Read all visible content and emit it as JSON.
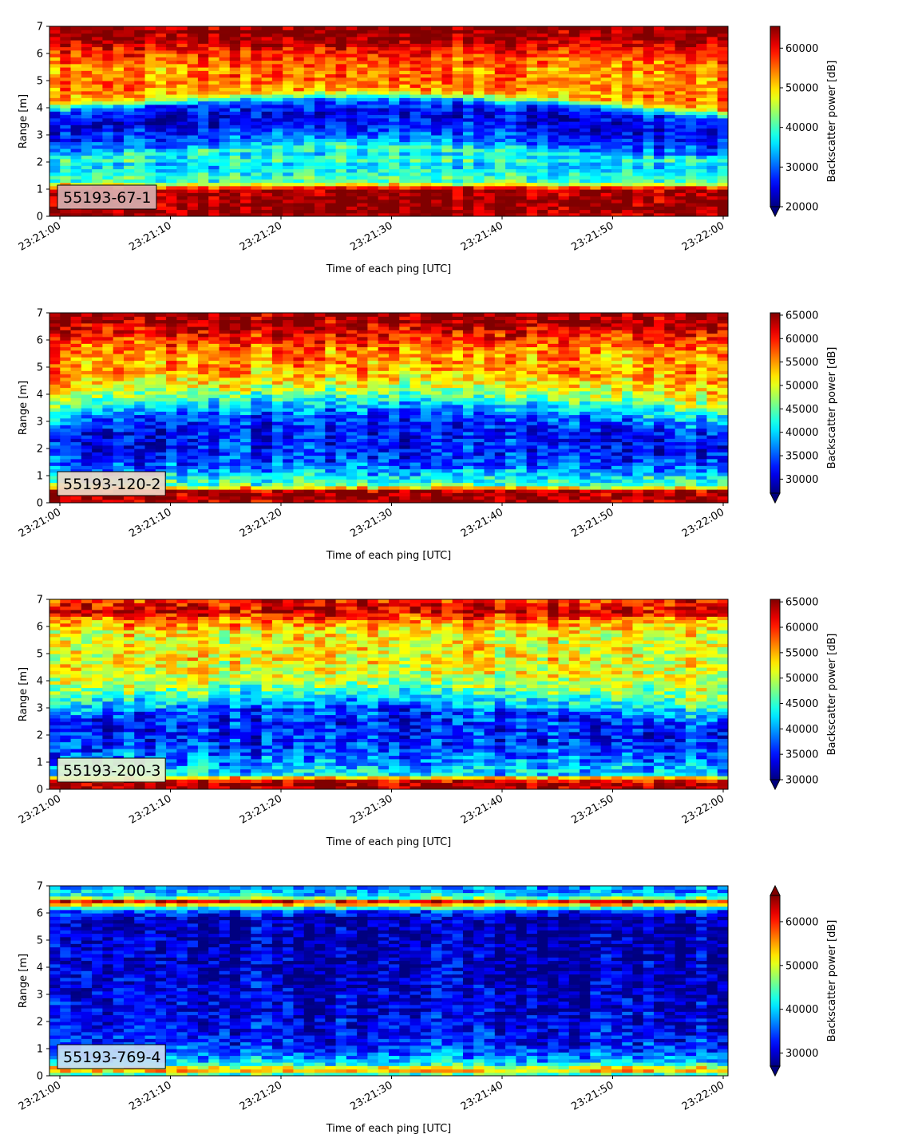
{
  "chart_data": [
    {
      "type": "heatmap",
      "label": "55193-67-1",
      "xlabel": "Time of each ping [UTC]",
      "ylabel": "Range [m]",
      "colorbar_label": "Backscatter power [dB]",
      "colormap": "jet",
      "x_range": [
        "23:21:00",
        "23:22:00"
      ],
      "xticks": [
        "23:21:00",
        "23:21:10",
        "23:21:20",
        "23:21:30",
        "23:21:40",
        "23:21:50",
        "23:22:00"
      ],
      "ylim": [
        0,
        7
      ],
      "yticks": [
        0,
        1,
        2,
        3,
        4,
        5,
        6,
        7
      ],
      "clim": [
        20000,
        65500
      ],
      "cbar_ticks": [
        20000,
        30000,
        40000,
        50000,
        60000
      ],
      "cbar_extend": "min",
      "label_box_color": "#d8b0b0",
      "profile": [
        {
          "range": 0.0,
          "value": 63000
        },
        {
          "range": 0.15,
          "value": 65000
        },
        {
          "range": 1.0,
          "value": 64000
        },
        {
          "range": 1.15,
          "value": 50000
        },
        {
          "range": 1.3,
          "value": 40000
        },
        {
          "range": 1.6,
          "value": 38000
        },
        {
          "range": 1.9,
          "value": 35000
        },
        {
          "range": 2.1,
          "value": 40000
        },
        {
          "range": 2.3,
          "value": 33000
        },
        {
          "range": 2.8,
          "value": 27000
        },
        {
          "range": 3.3,
          "value": 24000
        },
        {
          "range": 3.8,
          "value": 28000
        },
        {
          "range": 4.2,
          "value": 52000
        },
        {
          "range": 4.7,
          "value": 55000
        },
        {
          "range": 5.2,
          "value": 53000
        },
        {
          "range": 5.8,
          "value": 56000
        },
        {
          "range": 6.2,
          "value": 60000
        },
        {
          "range": 6.5,
          "value": 64000
        },
        {
          "range": 7.0,
          "value": 65000
        }
      ]
    },
    {
      "type": "heatmap",
      "label": "55193-120-2",
      "xlabel": "Time of each ping [UTC]",
      "ylabel": "Range [m]",
      "colorbar_label": "Backscatter power [dB]",
      "colormap": "jet",
      "x_range": [
        "23:21:00",
        "23:22:00"
      ],
      "xticks": [
        "23:21:00",
        "23:21:10",
        "23:21:20",
        "23:21:30",
        "23:21:40",
        "23:21:50",
        "23:22:00"
      ],
      "ylim": [
        0,
        7
      ],
      "yticks": [
        0,
        1,
        2,
        3,
        4,
        5,
        6,
        7
      ],
      "clim": [
        27000,
        65500
      ],
      "cbar_ticks": [
        30000,
        35000,
        40000,
        45000,
        50000,
        55000,
        60000,
        65000
      ],
      "cbar_extend": "min",
      "label_box_color": "#f0d8c8",
      "profile": [
        {
          "range": 0.0,
          "value": 62000
        },
        {
          "range": 0.1,
          "value": 65000
        },
        {
          "range": 0.5,
          "value": 64000
        },
        {
          "range": 0.6,
          "value": 45000
        },
        {
          "range": 0.9,
          "value": 42000
        },
        {
          "range": 1.3,
          "value": 36000
        },
        {
          "range": 1.8,
          "value": 33000
        },
        {
          "range": 2.3,
          "value": 32000
        },
        {
          "range": 2.8,
          "value": 34000
        },
        {
          "range": 3.3,
          "value": 40000
        },
        {
          "range": 3.8,
          "value": 48000
        },
        {
          "range": 4.3,
          "value": 53000
        },
        {
          "range": 4.8,
          "value": 55000
        },
        {
          "range": 5.3,
          "value": 55000
        },
        {
          "range": 5.8,
          "value": 57000
        },
        {
          "range": 6.3,
          "value": 61000
        },
        {
          "range": 6.6,
          "value": 64000
        },
        {
          "range": 7.0,
          "value": 65000
        }
      ]
    },
    {
      "type": "heatmap",
      "label": "55193-200-3",
      "xlabel": "Time of each ping [UTC]",
      "ylabel": "Range [m]",
      "colorbar_label": "Backscatter power [dB]",
      "colormap": "jet",
      "x_range": [
        "23:21:00",
        "23:22:00"
      ],
      "xticks": [
        "23:21:00",
        "23:21:10",
        "23:21:20",
        "23:21:30",
        "23:21:40",
        "23:21:50",
        "23:22:00"
      ],
      "ylim": [
        0,
        7
      ],
      "yticks": [
        0,
        1,
        2,
        3,
        4,
        5,
        6,
        7
      ],
      "clim": [
        30000,
        65500
      ],
      "cbar_ticks": [
        30000,
        35000,
        40000,
        45000,
        50000,
        55000,
        60000,
        65000
      ],
      "cbar_extend": "min",
      "label_box_color": "#e8f4d0",
      "profile": [
        {
          "range": 0.0,
          "value": 62000
        },
        {
          "range": 0.1,
          "value": 65000
        },
        {
          "range": 0.4,
          "value": 60000
        },
        {
          "range": 0.5,
          "value": 43000
        },
        {
          "range": 0.9,
          "value": 40000
        },
        {
          "range": 1.4,
          "value": 37000
        },
        {
          "range": 2.0,
          "value": 35000
        },
        {
          "range": 2.5,
          "value": 36000
        },
        {
          "range": 3.0,
          "value": 42000
        },
        {
          "range": 3.5,
          "value": 48000
        },
        {
          "range": 4.0,
          "value": 51000
        },
        {
          "range": 4.6,
          "value": 52000
        },
        {
          "range": 5.2,
          "value": 51000
        },
        {
          "range": 5.8,
          "value": 52000
        },
        {
          "range": 6.2,
          "value": 56000
        },
        {
          "range": 6.6,
          "value": 63000
        },
        {
          "range": 7.0,
          "value": 60000
        }
      ]
    },
    {
      "type": "heatmap",
      "label": "55193-769-4",
      "xlabel": "Time of each ping [UTC]",
      "ylabel": "Range [m]",
      "colorbar_label": "Backscatter power [dB]",
      "colormap": "jet",
      "x_range": [
        "23:21:00",
        "23:22:00"
      ],
      "xticks": [
        "23:21:00",
        "23:21:10",
        "23:21:20",
        "23:21:30",
        "23:21:40",
        "23:21:50",
        "23:22:00"
      ],
      "ylim": [
        0,
        7
      ],
      "yticks": [
        0,
        1,
        2,
        3,
        4,
        5,
        6,
        7
      ],
      "clim": [
        27000,
        66000
      ],
      "cbar_ticks": [
        30000,
        40000,
        50000,
        60000
      ],
      "cbar_extend": "both",
      "label_box_color": "#c8dcf4",
      "profile": [
        {
          "range": 0.0,
          "value": 40000
        },
        {
          "range": 0.15,
          "value": 50000
        },
        {
          "range": 0.25,
          "value": 60000
        },
        {
          "range": 0.35,
          "value": 45000
        },
        {
          "range": 0.6,
          "value": 38000
        },
        {
          "range": 1.2,
          "value": 33000
        },
        {
          "range": 2.0,
          "value": 31000
        },
        {
          "range": 3.0,
          "value": 30000
        },
        {
          "range": 4.0,
          "value": 29500
        },
        {
          "range": 5.0,
          "value": 29000
        },
        {
          "range": 5.8,
          "value": 29000
        },
        {
          "range": 6.1,
          "value": 35000
        },
        {
          "range": 6.3,
          "value": 52000
        },
        {
          "range": 6.45,
          "value": 62000
        },
        {
          "range": 6.6,
          "value": 42000
        },
        {
          "range": 7.0,
          "value": 36000
        }
      ]
    }
  ]
}
